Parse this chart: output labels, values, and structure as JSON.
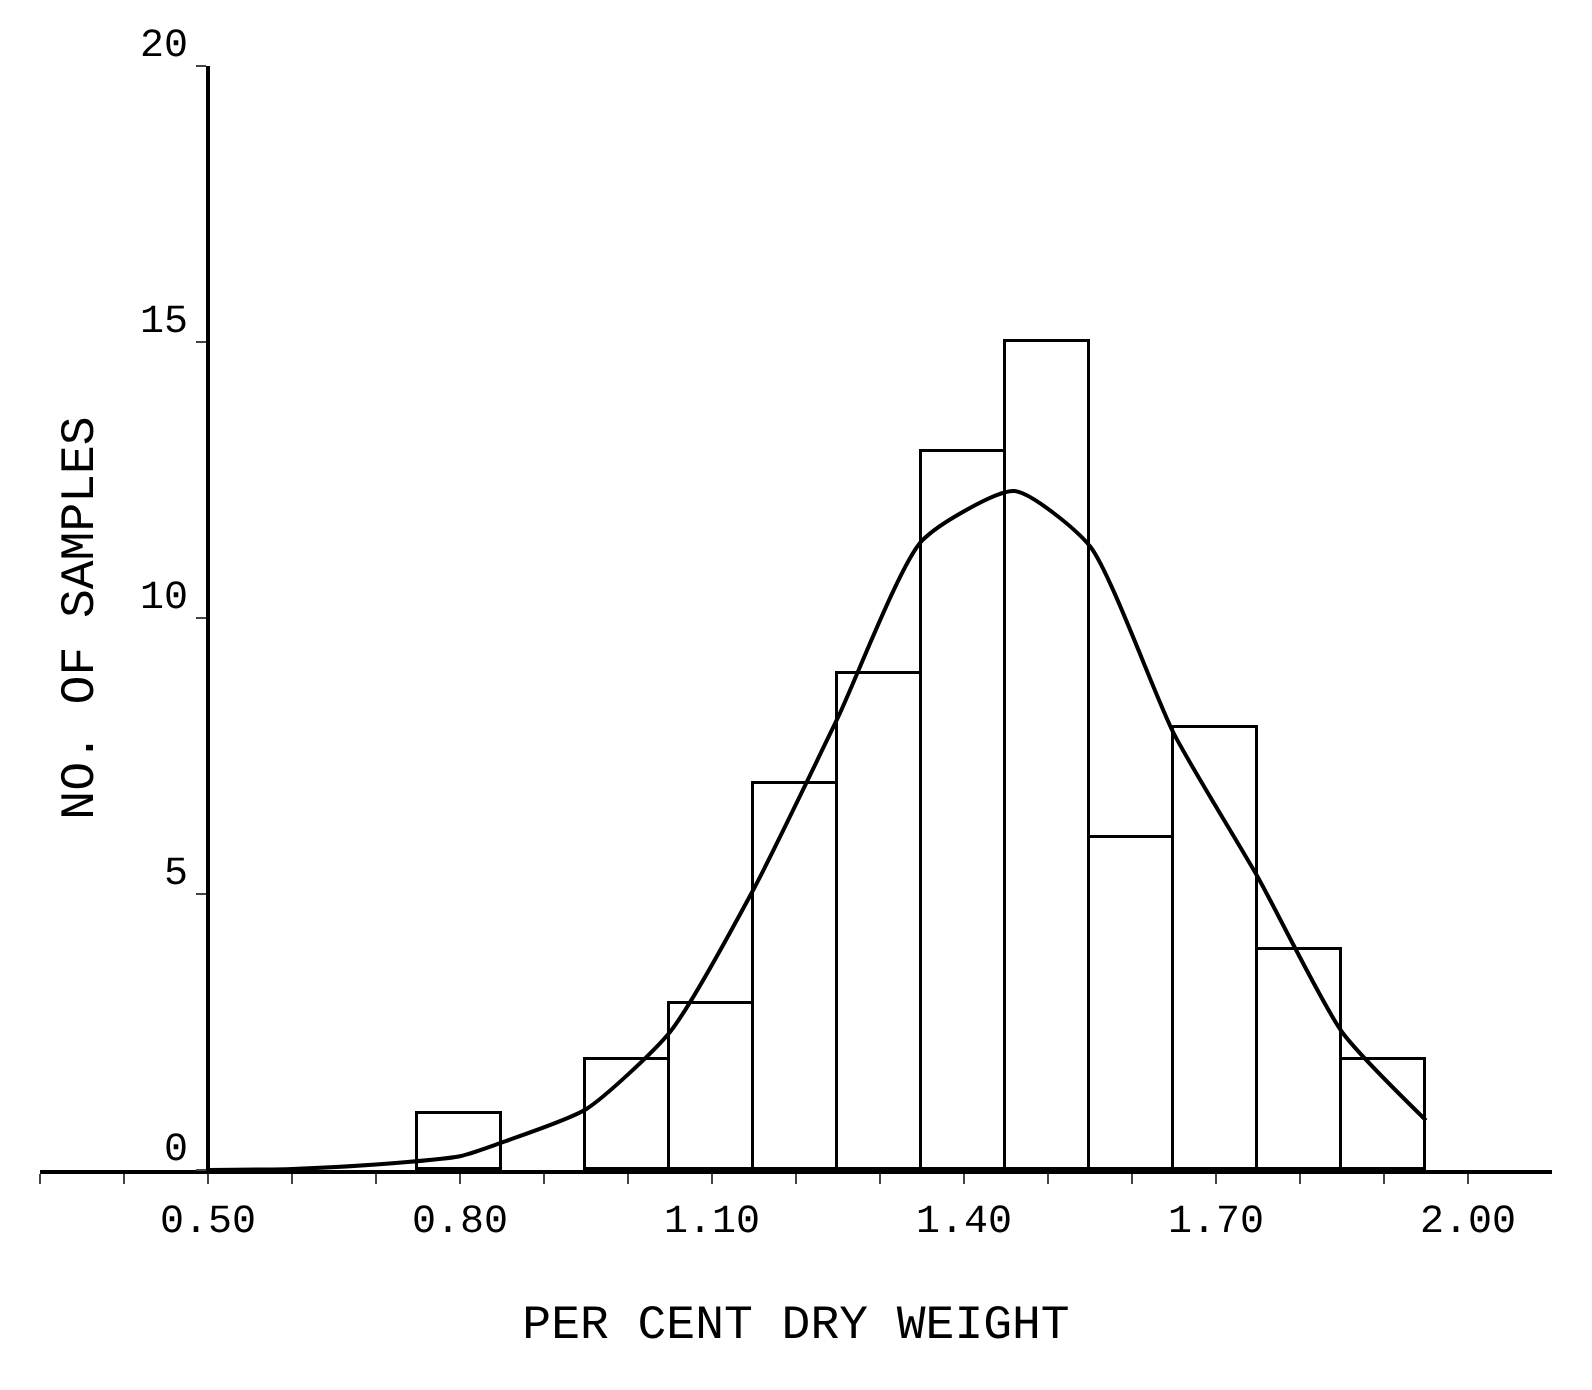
{
  "chart_data": {
    "type": "histogram",
    "xlabel": "PER CENT DRY WEIGHT",
    "ylabel": "NO. OF SAMPLES",
    "bins": [
      0.75,
      0.85,
      0.95,
      1.05,
      1.15,
      1.25,
      1.35,
      1.45,
      1.55,
      1.65,
      1.75,
      1.85,
      1.95
    ],
    "values": [
      1,
      0,
      2,
      3,
      7,
      9,
      13,
      15,
      6,
      8,
      4,
      2
    ],
    "color": "#ffffff",
    "series": [
      {
        "type": "line",
        "color": "#000000",
        "x": [
          0.5,
          0.6,
          0.7,
          0.8,
          0.85,
          0.95,
          1.05,
          1.15,
          1.25,
          1.35,
          1.46,
          1.55,
          1.65,
          1.75,
          1.85,
          1.95
        ],
        "values": [
          0,
          0.02,
          0.1,
          0.25,
          0.5,
          1.1,
          2.5,
          5.1,
          8.2,
          11.4,
          12.3,
          11.3,
          7.9,
          5.3,
          2.5,
          0.9
        ]
      }
    ],
    "xlim": [
      0.3,
      2.1
    ],
    "xticks": [
      {
        "value": 0.3,
        "label": null
      },
      {
        "value": 0.4,
        "label": null
      },
      "0.50",
      {
        "value": 0.6,
        "label": null
      },
      {
        "value": 0.7,
        "label": null
      },
      {
        "value": 0.8,
        "label": "0.80"
      },
      {
        "value": 0.9,
        "label": null
      },
      {
        "value": 1.0,
        "label": null
      },
      {
        "value": 1.1,
        "label": "1.10"
      },
      {
        "value": 1.2,
        "label": null
      },
      {
        "value": 1.3,
        "label": null
      },
      {
        "value": 1.4,
        "label": "1.40"
      },
      {
        "value": 1.5,
        "label": null
      },
      {
        "value": 1.6,
        "label": null
      },
      {
        "value": 1.7,
        "label": "1.70"
      },
      {
        "value": 1.8,
        "label": null
      },
      {
        "value": 1.9,
        "label": null
      },
      {
        "value": 2.0,
        "label": "2.00"
      }
    ],
    "ylim": [
      0,
      20
    ],
    "yticks": [
      0,
      5,
      10,
      15,
      20
    ]
  }
}
